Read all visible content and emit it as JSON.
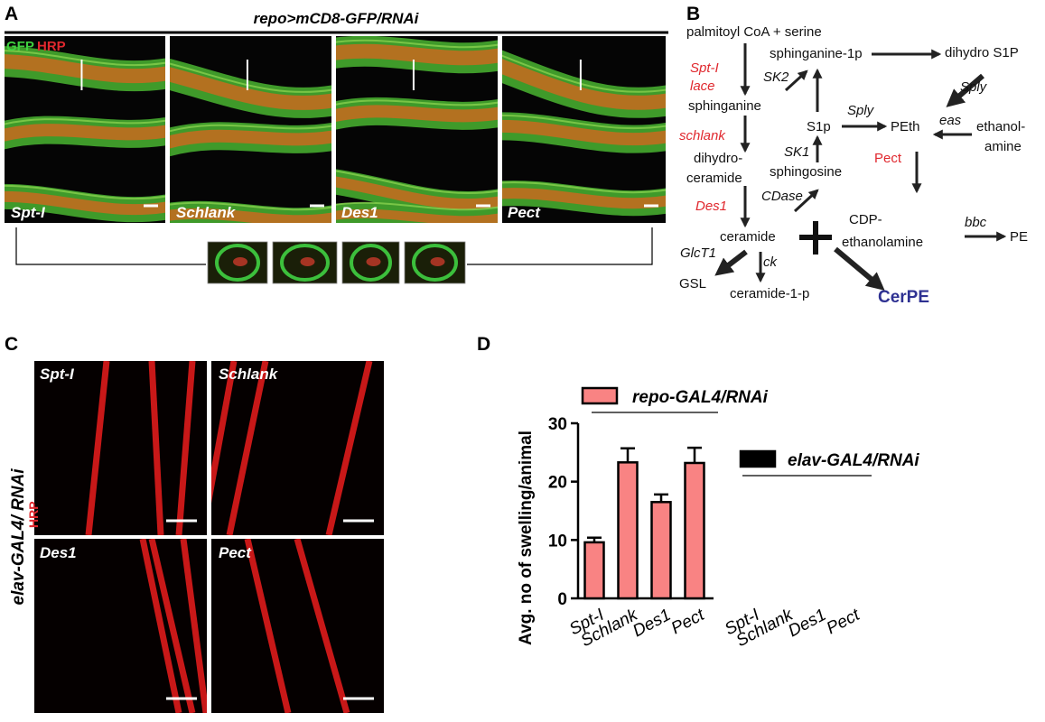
{
  "panel_labels": [
    "A",
    "B",
    "C",
    "D"
  ],
  "panel_a": {
    "title": "repo>mCD8-GFP/RNAi",
    "stain_labels": [
      "GFP",
      "HRP"
    ],
    "image_labels": [
      "Spt-I",
      "Schlank",
      "Des1",
      "Pect"
    ]
  },
  "panel_b": {
    "metabolites": [
      "palmitoyl CoA + serine",
      "sphinganine-1p",
      "dihydro S1P",
      "sphinganine",
      "S1p",
      "PEth",
      "ethanol-",
      "amine",
      "dihydro-",
      "ceramide",
      "sphingosine",
      "ceramide",
      "CDP-",
      "ethanolamine",
      "PE",
      "GSL",
      "ceramide-1-p"
    ],
    "genes": [
      "Spt-I",
      "lace",
      "schlank",
      "Des1",
      "Pect"
    ],
    "enzymes": [
      "SK2",
      "Sply",
      "Sply",
      "eas",
      "SK1",
      "CDase",
      "bbc",
      "GlcT1",
      "ck"
    ],
    "product": "CerPE"
  },
  "panel_c": {
    "side_label": "elav-GAL4/ RNAi",
    "stain_label": "HRP",
    "image_labels": [
      "Spt-I",
      "Schlank",
      "Des1",
      "Pect"
    ]
  },
  "chart_data": {
    "type": "bar",
    "y_label": "Avg. no of swelling/animal",
    "categories": [
      "Spt-I",
      "Schlank",
      "Des1",
      "Pect",
      "Spt-I",
      "Schlank",
      "Des1",
      "Pect"
    ],
    "series": [
      {
        "name": "repo-GAL4/RNAi",
        "color": "#f98383",
        "values": [
          9.6,
          23.3,
          16.5,
          23.2,
          null,
          null,
          null,
          null
        ],
        "errors": [
          0.8,
          2.4,
          1.3,
          2.6,
          null,
          null,
          null,
          null
        ]
      },
      {
        "name": "elav-GAL4/RNAi",
        "color": "#000000",
        "values": [
          null,
          null,
          null,
          null,
          0,
          0,
          0,
          0
        ]
      }
    ],
    "ylim": [
      0,
      30
    ],
    "yticks": [
      0,
      10,
      20,
      30
    ]
  }
}
